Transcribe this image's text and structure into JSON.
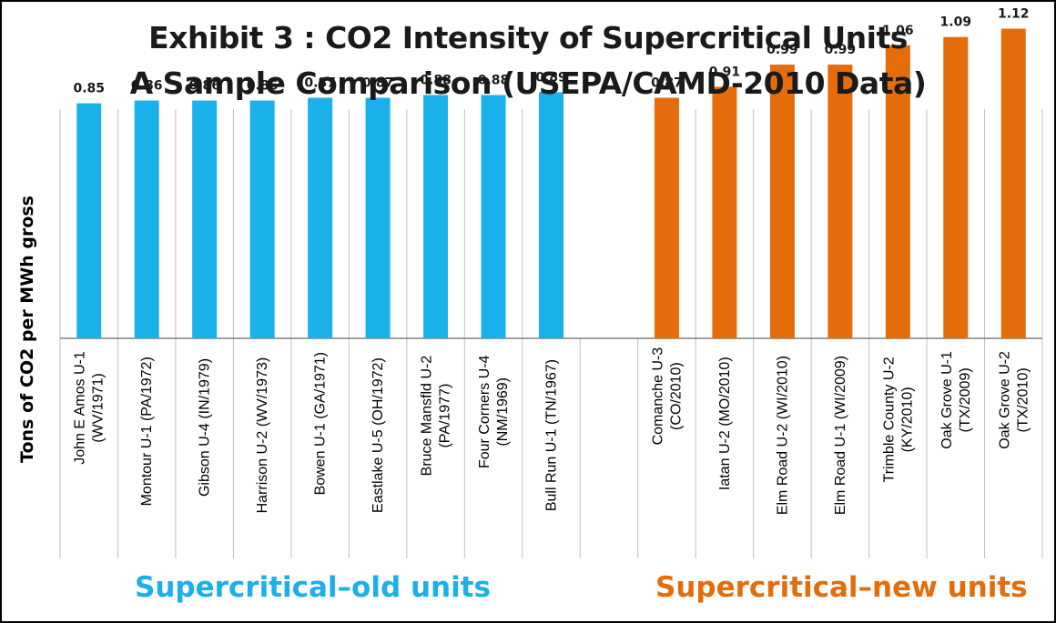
{
  "colors": {
    "old_series": "#1ab0ea",
    "new_series": "#e46c0a",
    "grid": "#bfbfbf"
  },
  "chart_data": {
    "type": "bar",
    "title": "Exhibit 3 : CO2 Intensity of Supercritical Units",
    "subtitle": "A Sample Comparison (USEPA/CAMD-2010 Data)",
    "xlabel": "",
    "ylabel": "Tons of CO2 per MWh gross",
    "ylim": [
      0,
      1.3
    ],
    "grid": "vertical category separators",
    "categories": [
      [
        "John E Amos U-1",
        "(WV/1971)"
      ],
      [
        "Montour U-1 (PA/1972)"
      ],
      [
        "Gibson U-4 (IN/1979)"
      ],
      [
        "Harrison U-2 (WV/1973)"
      ],
      [
        "Bowen U-1 (GA/1971)"
      ],
      [
        "Eastlake U-5 (OH/1972)"
      ],
      [
        "Bruce Mansfld U-2",
        "(PA/1977)"
      ],
      [
        "Four Corners U-4",
        "(NM/1969)"
      ],
      [
        "Bull Run U-1 (TN/1967)"
      ],
      [
        ""
      ],
      [
        "Comanche U-3",
        "(CO/2010)"
      ],
      [
        "Iatan U-2 (MO/2010)"
      ],
      [
        "Elm Road U-2 (WI/2010)"
      ],
      [
        "Elm Road U-1 (WI/2009)"
      ],
      [
        "Trimble County U-2",
        "(KY/2010)"
      ],
      [
        "Oak Grove U-1",
        "(TX/2009)"
      ],
      [
        "Oak Grove U-2",
        "(TX/2010)"
      ]
    ],
    "series": [
      {
        "name": "Supercritical–old units",
        "values": [
          0.85,
          0.86,
          0.86,
          0.86,
          0.87,
          0.87,
          0.88,
          0.88,
          0.89,
          null,
          null,
          null,
          null,
          null,
          null,
          null,
          null
        ]
      },
      {
        "name": "Supercritical–new units",
        "values": [
          null,
          null,
          null,
          null,
          null,
          null,
          null,
          null,
          null,
          null,
          0.87,
          0.91,
          0.99,
          0.99,
          1.06,
          1.09,
          1.12
        ]
      }
    ],
    "data_labels": [
      "0.85",
      "0.86",
      "0.86",
      "0.86",
      "0.87",
      "0.87",
      "0.88",
      "0.88",
      "0.89",
      "",
      "0.87",
      "0.91",
      "0.99",
      "0.99",
      "1.06",
      "1.09",
      "1.12"
    ]
  }
}
